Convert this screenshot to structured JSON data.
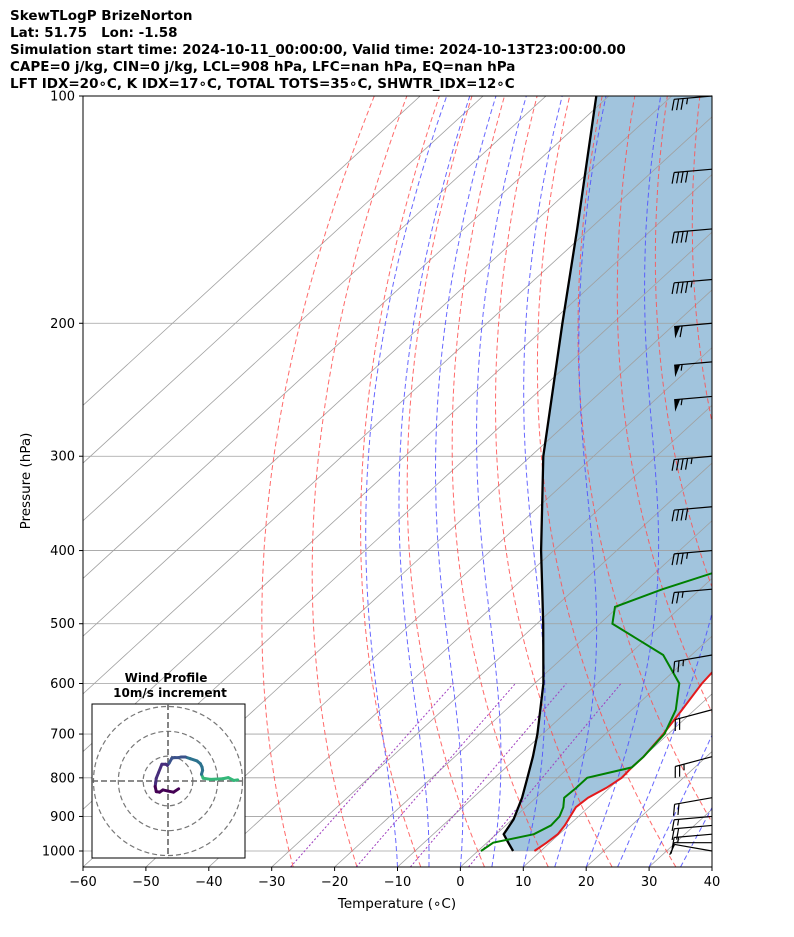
{
  "header": {
    "line1": "SkewTLogP BrizeNorton",
    "line2": "Lat: 51.75   Lon: -1.58",
    "line3": "Simulation start time: 2024-10-11_00:00:00, Valid time: 2024-10-13T23:00:00.00",
    "line4": "CAPE=0 j/kg, CIN=0 j/kg, LCL=908 hPa, LFC=nan hPa, EQ=nan hPa",
    "line5": "LFT IDX=20∘C, K IDX=17∘C, TOTAL TOTS=35∘C, SHWTR_IDX=12∘C"
  },
  "colors": {
    "temperature": "#e31a1c",
    "dewpoint": "#008000",
    "parcel": "#000000",
    "shade": "#a1c4dd",
    "dry_adiabat": "#ff5050",
    "moist_adiabat": "#4d4dff",
    "mixing_ratio": "#9f3fbf",
    "isotherm": "#a0a0a0"
  },
  "chart_data": {
    "type": "skewt",
    "title": "SkewTLogP BrizeNorton",
    "xlabel": "Temperature (∘C)",
    "ylabel": "Pressure (hPa)",
    "xlim": [
      -60,
      40
    ],
    "ylim": [
      1050,
      100
    ],
    "x_ticks": [
      "−60",
      "−50",
      "−40",
      "−30",
      "−20",
      "−10",
      "0",
      "10",
      "20",
      "30",
      "40"
    ],
    "x_tick_values": [
      -60,
      -50,
      -40,
      -30,
      -20,
      -10,
      0,
      10,
      20,
      30,
      40
    ],
    "y_ticks": [
      "100",
      "200",
      "300",
      "400",
      "500",
      "600",
      "700",
      "800",
      "900",
      "1000"
    ],
    "y_tick_values": [
      100,
      200,
      300,
      400,
      500,
      600,
      700,
      800,
      900,
      1000
    ],
    "temperature": {
      "pressure": [
        1000,
        975,
        950,
        925,
        900,
        875,
        850,
        825,
        800,
        775,
        750,
        700,
        650,
        600,
        550,
        500,
        450,
        400,
        350,
        300,
        275,
        250,
        225,
        200,
        175,
        150,
        125,
        100
      ],
      "values": [
        9,
        9.5,
        9.8,
        9.4,
        8.7,
        8.0,
        8.3,
        9.5,
        10.2,
        10.0,
        10.0,
        9.2,
        8.0,
        6.6,
        5.8,
        3.6,
        0,
        -6,
        -12,
        -17,
        -21,
        -21,
        -28,
        -34,
        -40,
        -47,
        -55,
        -64
      ]
    },
    "dewpoint": {
      "pressure": [
        1000,
        975,
        950,
        925,
        900,
        875,
        850,
        825,
        800,
        775,
        750,
        700,
        650,
        600,
        550,
        500,
        475,
        450,
        425,
        400,
        350,
        325,
        300,
        275,
        250,
        225,
        200,
        175,
        150,
        125,
        100
      ],
      "values": [
        0.5,
        1,
        6,
        7.2,
        7,
        6,
        4.5,
        4.7,
        4.7,
        10,
        10,
        9.4,
        7,
        3,
        -4.5,
        -18,
        -20.5,
        -16,
        -10,
        -9,
        -16,
        -21,
        -23,
        -24,
        -27,
        -31,
        -33,
        -38,
        -44,
        -53,
        -62
      ]
    },
    "parcel": {
      "pressure": [
        1000,
        975,
        950,
        908,
        850,
        800,
        750,
        700,
        600,
        500,
        400,
        300,
        250,
        200,
        150,
        100
      ],
      "values": [
        5.6,
        3.4,
        1.2,
        0.2,
        -2.2,
        -4.8,
        -7.6,
        -10.8,
        -18.6,
        -29,
        -42,
        -58,
        -67,
        -78,
        -92,
        -112
      ]
    },
    "wind_barbs": {
      "pressure": [
        1000,
        975,
        950,
        925,
        900,
        850,
        750,
        650,
        550,
        450,
        400,
        350,
        300,
        250,
        225,
        200,
        175,
        150,
        125,
        100
      ],
      "speed_kt": [
        10,
        10,
        15,
        20,
        15,
        20,
        25,
        20,
        25,
        25,
        35,
        40,
        45,
        55,
        55,
        60,
        45,
        40,
        40,
        35
      ],
      "direction_deg": [
        280,
        270,
        265,
        265,
        265,
        260,
        255,
        255,
        260,
        265,
        265,
        265,
        265,
        265,
        265,
        265,
        265,
        265,
        265,
        265
      ]
    },
    "hodograph": {
      "title": "Wind Profile",
      "subtitle": "10m/s increment",
      "u": [
        12.5,
        11.8,
        10.8,
        9.8,
        7.6,
        6.3,
        6.0,
        6.2,
        6.1,
        5.8,
        5.2,
        4.0,
        3.1,
        2.4,
        1.9,
        1.2,
        0.7,
        0.2,
        -0.1,
        -0.4,
        -1.1,
        -1.7,
        -2.1,
        -2.2,
        -2.3,
        -2.1,
        -1.5,
        -0.9,
        0.0,
        1.0,
        1.9
      ],
      "v": [
        0.2,
        0.1,
        0.6,
        0.4,
        0.3,
        0.5,
        1.2,
        1.9,
        2.5,
        3.1,
        3.6,
        4.0,
        4.3,
        4.3,
        4.2,
        4.2,
        4.1,
        3.2,
        2.8,
        3.0,
        3.0,
        1.5,
        0.5,
        -0.2,
        -1.0,
        -1.9,
        -2.0,
        -1.6,
        -1.8,
        -2.0,
        -1.4
      ]
    }
  }
}
